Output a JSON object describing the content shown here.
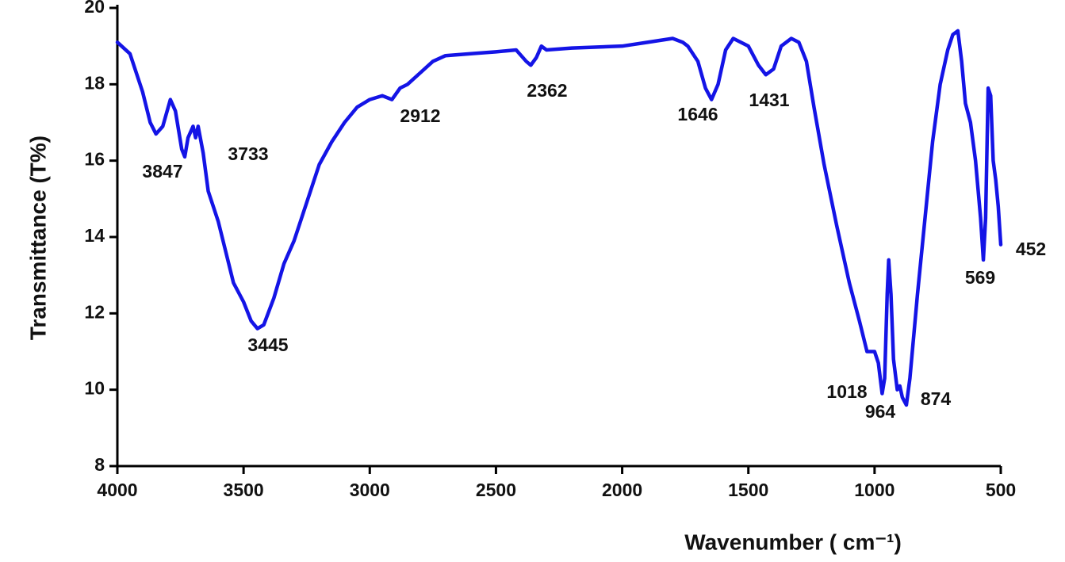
{
  "chart_data": {
    "type": "line",
    "x_label": "Wavenumber ( cm⁻¹)",
    "y_label": "Transmittance (T%)",
    "xlim": [
      4000,
      500
    ],
    "ylim": [
      8,
      20
    ],
    "xticks": [
      4000,
      3500,
      3000,
      2500,
      2000,
      1500,
      1000,
      500
    ],
    "yticks": [
      8,
      10,
      12,
      14,
      16,
      18,
      20
    ],
    "x": [
      4000,
      3950,
      3900,
      3870,
      3847,
      3820,
      3790,
      3770,
      3745,
      3733,
      3720,
      3700,
      3690,
      3680,
      3660,
      3640,
      3600,
      3570,
      3540,
      3500,
      3470,
      3445,
      3420,
      3380,
      3340,
      3300,
      3250,
      3200,
      3150,
      3100,
      3050,
      3000,
      2950,
      2912,
      2880,
      2850,
      2800,
      2750,
      2700,
      2600,
      2500,
      2420,
      2380,
      2362,
      2340,
      2320,
      2300,
      2200,
      2000,
      1900,
      1800,
      1760,
      1740,
      1700,
      1670,
      1646,
      1620,
      1590,
      1560,
      1500,
      1460,
      1431,
      1400,
      1370,
      1330,
      1300,
      1270,
      1240,
      1200,
      1150,
      1100,
      1060,
      1030,
      1018,
      1000,
      985,
      970,
      960,
      950,
      944,
      935,
      925,
      910,
      900,
      890,
      874,
      860,
      830,
      800,
      770,
      740,
      710,
      690,
      670,
      655,
      640,
      620,
      600,
      580,
      569,
      560,
      550,
      540,
      530,
      520,
      510,
      500
    ],
    "series": [
      {
        "color": "#1414e6",
        "values": [
          19.1,
          18.8,
          17.8,
          17.0,
          16.7,
          16.9,
          17.6,
          17.3,
          16.3,
          16.1,
          16.6,
          16.9,
          16.6,
          16.9,
          16.2,
          15.2,
          14.4,
          13.6,
          12.8,
          12.3,
          11.8,
          11.6,
          11.7,
          12.4,
          13.3,
          13.9,
          14.9,
          15.9,
          16.5,
          17.0,
          17.4,
          17.6,
          17.7,
          17.6,
          17.9,
          18.0,
          18.3,
          18.6,
          18.75,
          18.8,
          18.85,
          18.9,
          18.6,
          18.5,
          18.7,
          19.0,
          18.9,
          18.95,
          19.0,
          19.1,
          19.2,
          19.1,
          19.0,
          18.6,
          17.9,
          17.6,
          18.0,
          18.9,
          19.2,
          19.0,
          18.5,
          18.25,
          18.4,
          19.0,
          19.2,
          19.1,
          18.6,
          17.4,
          15.9,
          14.3,
          12.8,
          11.8,
          11.0,
          11.0,
          11.0,
          10.7,
          9.9,
          10.3,
          12.5,
          13.4,
          12.5,
          10.8,
          10.0,
          10.1,
          9.8,
          9.6,
          10.3,
          12.5,
          14.5,
          16.5,
          18.0,
          18.9,
          19.3,
          19.4,
          18.6,
          17.5,
          17.0,
          16.0,
          14.5,
          13.4,
          14.5,
          17.9,
          17.7,
          16.0,
          15.5,
          14.8,
          13.8
        ]
      }
    ],
    "annotations": [
      "3847",
      "3733",
      "3445",
      "2912",
      "2362",
      "1646",
      "1431",
      "1018",
      "964",
      "874",
      "569",
      "452"
    ]
  }
}
